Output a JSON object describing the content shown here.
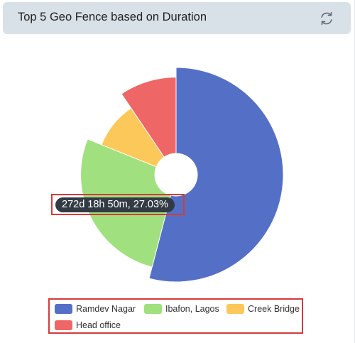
{
  "header": {
    "title": "Top 5 Geo Fence based on Duration",
    "refresh_icon": "refresh-icon"
  },
  "colors": {
    "header_bg": "#d9e1e8",
    "highlight_border": "#d63a3a",
    "tooltip_bg": "#323b44"
  },
  "tooltip": {
    "text": "272d 18h 50m, 27.03%"
  },
  "chart_data": {
    "type": "pie",
    "donut": true,
    "rose": true,
    "start_angle_deg": 0,
    "series": [
      {
        "name": "Ramdev Nagar",
        "share": 0.5405,
        "radius_value": 1.0,
        "color": "#5470c6"
      },
      {
        "name": "Ibafon, Lagos",
        "share": 0.2703,
        "radius_value": 0.89,
        "color": "#a0e07e"
      },
      {
        "name": "Creek Bridge",
        "share": 0.0946,
        "radius_value": 0.75,
        "color": "#fcc859"
      },
      {
        "name": "Head office",
        "share": 0.0946,
        "radius_value": 0.91,
        "color": "#ef6666"
      }
    ],
    "legend_position": "bottom"
  }
}
